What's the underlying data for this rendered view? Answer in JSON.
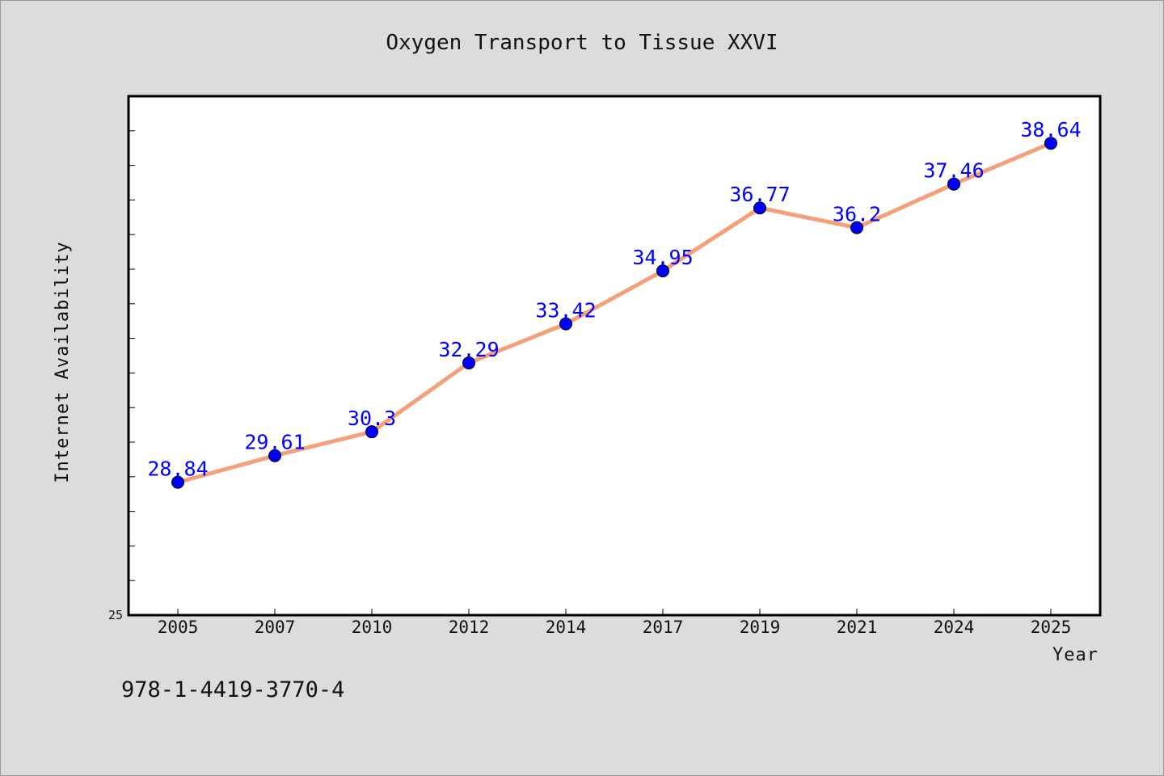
{
  "chart_data": {
    "type": "line",
    "title": "Oxygen Transport to Tissue XXVI",
    "xlabel": "Year",
    "ylabel": "Internet Availability",
    "categories": [
      "2005",
      "2007",
      "2010",
      "2012",
      "2014",
      "2017",
      "2019",
      "2021",
      "2024",
      "2025"
    ],
    "series": [
      {
        "values": [
          28.84,
          29.61,
          30.3,
          32.29,
          33.42,
          34.95,
          36.77,
          36.2,
          37.46,
          38.64
        ]
      }
    ],
    "data_labels": [
      "28.84",
      "29.61",
      "30.3",
      "32.29",
      "33.42",
      "34.95",
      "36.77",
      "36.2",
      "37.46",
      "38.64"
    ],
    "ylim": [
      25,
      40
    ],
    "y_tick_labels": [
      "25"
    ],
    "grid": false,
    "legend": "none",
    "colors": {
      "line": "#f4a07a",
      "marker": "#0000ff",
      "data_label": "#0000ff",
      "background": "#dcdcdc",
      "plot_background": "#ffffff"
    }
  },
  "footer": {
    "isbn": "978-1-4419-3770-4"
  }
}
